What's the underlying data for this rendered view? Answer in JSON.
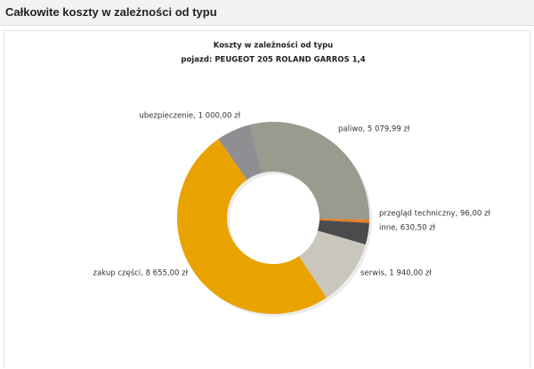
{
  "header": {
    "title": "Całkowite koszty w zależności od typu"
  },
  "chart_data": {
    "type": "donut",
    "title": "Koszty w zależności od typu",
    "subtitle": "pojazd: PEUGEOT 205 ROLAND GARROS 1,4",
    "values": [
      5079.99,
      96.0,
      630.5,
      1940.0,
      8655.0,
      1000.0
    ],
    "value_labels": [
      "paliwo, 5 079,99 zł",
      "przegląd techniczny, 96,00 zł",
      "inne, 630,50 zł",
      "serwis, 1 940,00 zł",
      "zakup części, 8 655,00 zł",
      "ubezpieczenie, 1 000,00 zł"
    ],
    "colors": [
      "#9a9a8f",
      "#e67e22",
      "#4b4b4d",
      "#c9c7bd",
      "#e9a300",
      "#8f8e93"
    ]
  }
}
